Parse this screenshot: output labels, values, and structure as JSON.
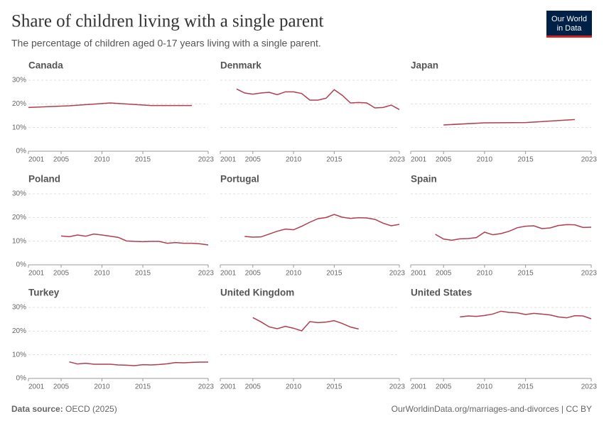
{
  "title": "Share of children living with a single parent",
  "subtitle": "The percentage of children aged 0-17 years living with a single parent.",
  "logo": {
    "line1": "Our World",
    "line2": "in Data"
  },
  "footer": {
    "source_label": "Data source:",
    "source": "OECD (2025)",
    "right": "OurWorldinData.org/marriages-and-divorces | CC BY"
  },
  "chart_data": [
    {
      "type": "line",
      "title": "Canada",
      "color": "#b13d50",
      "grid": true,
      "x": [
        2001,
        2006,
        2011,
        2016,
        2021
      ],
      "values": [
        18.5,
        19.2,
        20.4,
        19.3,
        19.3
      ],
      "xlim": [
        2001,
        2023
      ],
      "xticks": [
        2001,
        2005,
        2010,
        2015,
        2023
      ],
      "ylim": [
        0,
        30
      ],
      "yticks": [
        {
          "value": 0,
          "label": "0%"
        },
        {
          "value": 10,
          "label": "10%"
        },
        {
          "value": 20,
          "label": "20%"
        },
        {
          "value": 30,
          "label": "30%"
        }
      ]
    },
    {
      "type": "line",
      "title": "Denmark",
      "color": "#b13d50",
      "grid": true,
      "x": [
        2003,
        2004,
        2005,
        2006,
        2007,
        2008,
        2009,
        2010,
        2011,
        2012,
        2013,
        2014,
        2015,
        2016,
        2017,
        2018,
        2019,
        2020,
        2021,
        2022,
        2023
      ],
      "values": [
        26.3,
        24.6,
        24.1,
        24.6,
        24.9,
        23.9,
        25.1,
        25.1,
        24.4,
        21.6,
        21.6,
        22.4,
        26.0,
        23.6,
        20.4,
        20.6,
        20.4,
        18.3,
        18.5,
        19.5,
        17.6
      ],
      "xlim": [
        2001,
        2023
      ],
      "xticks": [
        2001,
        2005,
        2010,
        2015,
        2023
      ],
      "ylim": [
        0,
        30
      ],
      "yticks": [
        0,
        10,
        20,
        30
      ]
    },
    {
      "type": "line",
      "title": "Japan",
      "color": "#b13d50",
      "grid": true,
      "x": [
        2005,
        2010,
        2015,
        2021
      ],
      "values": [
        11.1,
        12.0,
        12.1,
        13.4
      ],
      "xlim": [
        2001,
        2023
      ],
      "xticks": [
        2001,
        2005,
        2010,
        2015,
        2023
      ],
      "ylim": [
        0,
        30
      ],
      "yticks": [
        0,
        10,
        20,
        30
      ]
    },
    {
      "type": "line",
      "title": "Poland",
      "color": "#b13d50",
      "grid": true,
      "x": [
        2005,
        2006,
        2007,
        2008,
        2009,
        2010,
        2011,
        2012,
        2013,
        2014,
        2015,
        2016,
        2017,
        2018,
        2019,
        2020,
        2021,
        2022,
        2023
      ],
      "values": [
        12.2,
        11.9,
        12.6,
        12.1,
        13.0,
        12.6,
        12.1,
        11.6,
        10.1,
        9.9,
        9.8,
        9.9,
        9.9,
        9.1,
        9.4,
        9.1,
        9.1,
        8.9,
        8.4
      ],
      "xlim": [
        2001,
        2023
      ],
      "xticks": [
        2001,
        2005,
        2010,
        2015,
        2023
      ],
      "ylim": [
        0,
        30
      ],
      "yticks": [
        {
          "value": 0,
          "label": "0%"
        },
        {
          "value": 10,
          "label": "10%"
        },
        {
          "value": 20,
          "label": "20%"
        },
        {
          "value": 30,
          "label": "30%"
        }
      ]
    },
    {
      "type": "line",
      "title": "Portugal",
      "color": "#b13d50",
      "grid": true,
      "x": [
        2004,
        2005,
        2006,
        2007,
        2008,
        2009,
        2010,
        2011,
        2012,
        2013,
        2014,
        2015,
        2016,
        2017,
        2018,
        2019,
        2020,
        2021,
        2022,
        2023
      ],
      "values": [
        12.0,
        11.7,
        11.8,
        13.0,
        14.2,
        15.1,
        14.8,
        16.3,
        18.0,
        19.5,
        20.0,
        21.3,
        20.1,
        19.6,
        19.9,
        19.8,
        19.2,
        17.6,
        16.5,
        17.1
      ],
      "xlim": [
        2001,
        2023
      ],
      "xticks": [
        2001,
        2005,
        2010,
        2015,
        2023
      ],
      "ylim": [
        0,
        30
      ],
      "yticks": [
        0,
        10,
        20,
        30
      ]
    },
    {
      "type": "line",
      "title": "Spain",
      "color": "#b13d50",
      "grid": true,
      "x": [
        2004,
        2005,
        2006,
        2007,
        2008,
        2009,
        2010,
        2011,
        2012,
        2013,
        2014,
        2015,
        2016,
        2017,
        2018,
        2019,
        2020,
        2021,
        2022,
        2023
      ],
      "values": [
        12.9,
        10.9,
        10.4,
        11.0,
        11.1,
        11.5,
        13.8,
        12.7,
        13.2,
        14.2,
        15.7,
        16.3,
        16.5,
        15.3,
        15.6,
        16.6,
        17.0,
        16.9,
        15.8,
        15.9
      ],
      "xlim": [
        2001,
        2023
      ],
      "xticks": [
        2001,
        2005,
        2010,
        2015,
        2023
      ],
      "ylim": [
        0,
        30
      ],
      "yticks": [
        0,
        10,
        20,
        30
      ]
    },
    {
      "type": "line",
      "title": "Turkey",
      "color": "#b13d50",
      "grid": true,
      "x": [
        2006,
        2007,
        2008,
        2009,
        2010,
        2011,
        2012,
        2013,
        2014,
        2015,
        2016,
        2017,
        2018,
        2019,
        2020,
        2021,
        2022,
        2023
      ],
      "values": [
        7.0,
        6.1,
        6.4,
        6.0,
        6.0,
        6.0,
        5.7,
        5.6,
        5.4,
        5.8,
        5.7,
        5.9,
        6.2,
        6.7,
        6.6,
        6.8,
        6.9,
        6.9
      ],
      "xlim": [
        2001,
        2023
      ],
      "xticks": [
        2001,
        2005,
        2010,
        2015,
        2023
      ],
      "ylim": [
        0,
        30
      ],
      "yticks": [
        {
          "value": 0,
          "label": "0%"
        },
        {
          "value": 10,
          "label": "10%"
        },
        {
          "value": 20,
          "label": "20%"
        },
        {
          "value": 30,
          "label": "30%"
        }
      ]
    },
    {
      "type": "line",
      "title": "United Kingdom",
      "color": "#b13d50",
      "grid": true,
      "x": [
        2005,
        2006,
        2007,
        2008,
        2009,
        2010,
        2011,
        2012,
        2013,
        2014,
        2015,
        2016,
        2017,
        2018
      ],
      "values": [
        25.7,
        23.9,
        21.8,
        21.0,
        22.0,
        21.2,
        20.1,
        24.0,
        23.6,
        23.8,
        24.4,
        23.2,
        21.7,
        20.9
      ],
      "xlim": [
        2001,
        2023
      ],
      "xticks": [
        2001,
        2005,
        2010,
        2015,
        2023
      ],
      "ylim": [
        0,
        30
      ],
      "yticks": [
        0,
        10,
        20,
        30
      ]
    },
    {
      "type": "line",
      "title": "United States",
      "color": "#b13d50",
      "grid": true,
      "x": [
        2007,
        2008,
        2009,
        2010,
        2011,
        2012,
        2013,
        2014,
        2015,
        2016,
        2017,
        2018,
        2019,
        2020,
        2021,
        2022,
        2023
      ],
      "values": [
        26.0,
        26.4,
        26.2,
        26.6,
        27.2,
        28.4,
        27.9,
        27.7,
        27.0,
        27.5,
        27.2,
        26.8,
        26.0,
        25.6,
        26.5,
        26.4,
        25.2
      ],
      "xlim": [
        2001,
        2023
      ],
      "xticks": [
        2001,
        2005,
        2010,
        2015,
        2023
      ],
      "ylim": [
        0,
        30
      ],
      "yticks": [
        0,
        10,
        20,
        30
      ]
    }
  ]
}
